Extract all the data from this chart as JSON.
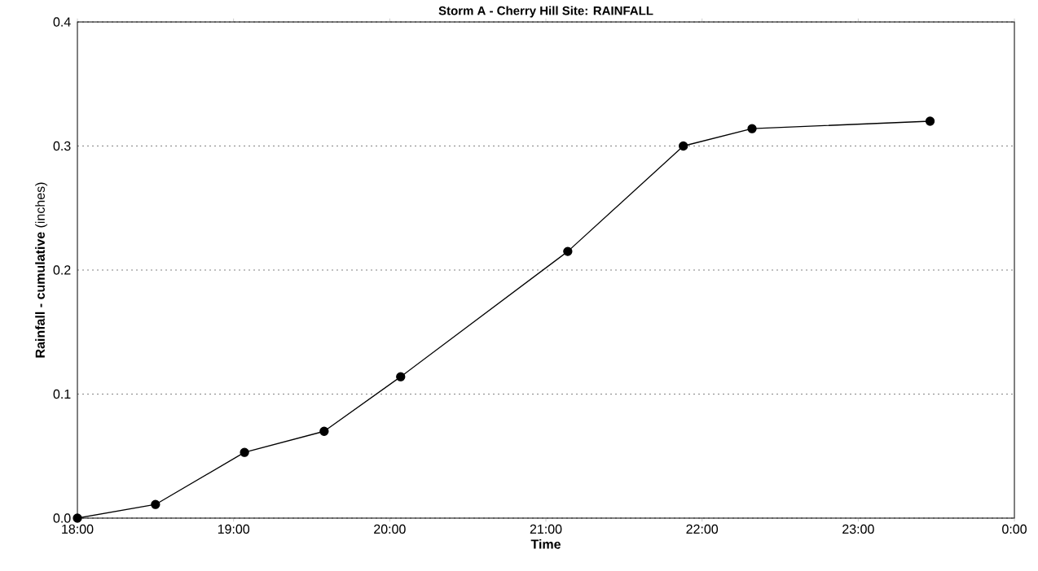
{
  "chart_data": {
    "type": "line",
    "title": "Storm A - Cherry Hill Site:  RAINFALL",
    "xlabel": "Time",
    "ylabel": "**Rainfall - cumulative** (inches)",
    "x": [
      18,
      18.5,
      19.07,
      19.58,
      20.07,
      21.14,
      21.88,
      22.32,
      23.46
    ],
    "series": [
      {
        "color": "#000000",
        "values": [
          0,
          0.011,
          0.053,
          0.07,
          0.114,
          0.215,
          0.3,
          0.314,
          0.32
        ]
      }
    ],
    "xlim": [
      18,
      24
    ],
    "xticks": [
      {
        "value": 18,
        "label": "18:00"
      },
      {
        "value": 19,
        "label": "19:00"
      },
      {
        "value": 20,
        "label": "20:00"
      },
      {
        "value": 21,
        "label": "21:00"
      },
      {
        "value": 22,
        "label": "22:00"
      },
      {
        "value": 23,
        "label": "23:00"
      },
      {
        "value": 24,
        "label": "0:00"
      }
    ],
    "ylim": [
      0,
      0.4
    ],
    "yticks": [
      {
        "value": 0,
        "label": "0.0"
      },
      {
        "value": 0.1,
        "label": "0.1"
      },
      {
        "value": 0.2,
        "label": "0.2"
      },
      {
        "value": 0.3,
        "label": "0.3"
      },
      {
        "value": 0.4,
        "label": "0.4"
      }
    ],
    "grid": "y",
    "marker": "circle",
    "line_style": "solid"
  }
}
